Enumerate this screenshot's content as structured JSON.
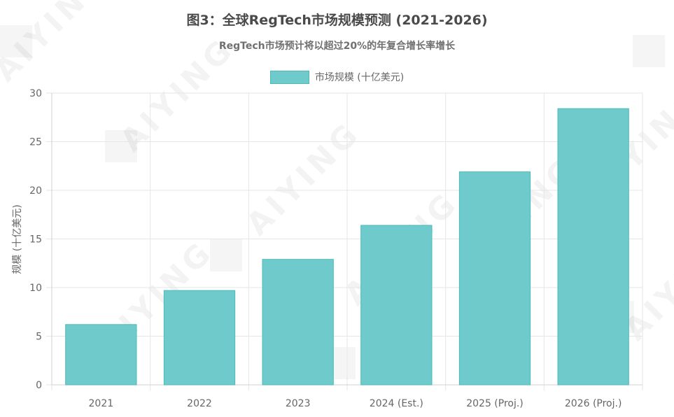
{
  "page": {
    "title": "图3：全球RegTech市场规模预测 (2021-2026)",
    "subtitle": "RegTech市场预计将以超过20%的年复合增长率增长"
  },
  "watermark": {
    "text": "AIYING"
  },
  "chart_data": {
    "type": "bar",
    "title": "图3：全球RegTech市场规模预测 (2021-2026)",
    "subtitle": "RegTech市场预计将以超过20%的年复合增长率增长",
    "categories": [
      "2021",
      "2022",
      "2023",
      "2024 (Est.)",
      "2025 (Proj.)",
      "2026 (Proj.)"
    ],
    "series": [
      {
        "name": "市场规模 (十亿美元)",
        "values": [
          6.2,
          9.7,
          12.9,
          16.4,
          21.9,
          28.4
        ]
      }
    ],
    "xlabel": "",
    "ylabel": "规模 (十亿美元)",
    "ylim": [
      0,
      30
    ],
    "yticks": [
      0,
      5,
      10,
      15,
      20,
      25,
      30
    ],
    "grid": true,
    "legend_position": "top-center",
    "colors": {
      "bar_fill": "#6fcbcb",
      "bar_stroke": "#4bbaba",
      "grid": "#e6e6e6"
    }
  }
}
